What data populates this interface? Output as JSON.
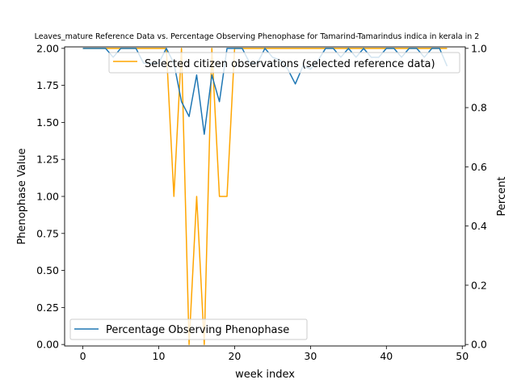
{
  "chart_data": {
    "type": "line",
    "title": "Leaves_mature Reference Data vs. Percentage Observing Phenophase for Tamarind-Tamarindus indica in kerala in 2",
    "xlabel": "week index",
    "ylabel_left": "Phenophase Value",
    "ylabel_right": "Percent",
    "xlim": [
      -2.4,
      50.4
    ],
    "ylim_left": [
      -0.01,
      2.01
    ],
    "ylim_right": [
      -0.005,
      1.005
    ],
    "x_ticks": [
      0,
      10,
      20,
      30,
      40,
      50
    ],
    "x_tick_labels": [
      "0",
      "10",
      "20",
      "30",
      "40",
      "50"
    ],
    "y_left_ticks": [
      0,
      0.25,
      0.5,
      0.75,
      1.0,
      1.25,
      1.5,
      1.75,
      2.0
    ],
    "y_left_tick_labels": [
      "0.00",
      "0.25",
      "0.50",
      "0.75",
      "1.00",
      "1.25",
      "1.50",
      "1.75",
      "2.00"
    ],
    "y_right_ticks": [
      0,
      0.2,
      0.4,
      0.6,
      0.8,
      1.0
    ],
    "y_right_tick_labels": [
      "0.0",
      "0.2",
      "0.4",
      "0.6",
      "0.8",
      "1.0"
    ],
    "grid": false,
    "series": [
      {
        "name": "Selected citizen observations (selected reference data)",
        "axis": "left",
        "color": "#ffa500",
        "legend_position": "upper-right",
        "x": [
          0,
          1,
          2,
          3,
          4,
          5,
          6,
          7,
          8,
          9,
          10,
          11,
          12,
          13,
          14,
          15,
          16,
          17,
          18,
          19,
          20,
          21,
          22,
          23,
          24,
          25,
          26,
          27,
          28,
          29,
          30,
          31,
          32,
          33,
          34,
          35,
          36,
          37,
          38,
          39,
          40,
          41,
          42,
          43,
          44,
          45,
          46,
          47,
          48
        ],
        "values": [
          2,
          2,
          2,
          2,
          2,
          2,
          2,
          2,
          2,
          2,
          2,
          2,
          1,
          2,
          0,
          1,
          0,
          2,
          1,
          1,
          2,
          2,
          2,
          2,
          2,
          2,
          2,
          2,
          2,
          2,
          2,
          2,
          2,
          2,
          2,
          2,
          2,
          2,
          2,
          2,
          2,
          2,
          2,
          2,
          2,
          2,
          2,
          2,
          2
        ]
      },
      {
        "name": "Percentage Observing Phenophase",
        "axis": "right",
        "color": "#1f77b4",
        "legend_position": "lower-left",
        "x": [
          0,
          1,
          2,
          3,
          4,
          5,
          6,
          7,
          8,
          9,
          10,
          11,
          12,
          13,
          14,
          15,
          16,
          17,
          18,
          19,
          20,
          21,
          22,
          23,
          24,
          25,
          26,
          27,
          28,
          29,
          30,
          31,
          32,
          33,
          34,
          35,
          36,
          37,
          38,
          39,
          40,
          41,
          42,
          43,
          44,
          45,
          46,
          47,
          48
        ],
        "values": [
          1.0,
          1.0,
          1.0,
          1.0,
          0.97,
          1.0,
          1.0,
          1.0,
          0.95,
          0.95,
          0.95,
          1.0,
          0.95,
          0.82,
          0.77,
          0.91,
          0.71,
          0.91,
          0.82,
          1.0,
          1.0,
          1.0,
          0.95,
          0.95,
          1.0,
          0.97,
          0.96,
          0.93,
          0.88,
          0.94,
          0.93,
          0.96,
          1.0,
          1.0,
          0.97,
          1.0,
          0.97,
          1.0,
          0.97,
          0.97,
          1.0,
          1.0,
          0.97,
          1.0,
          1.0,
          0.97,
          1.0,
          1.0,
          0.94
        ]
      }
    ]
  }
}
